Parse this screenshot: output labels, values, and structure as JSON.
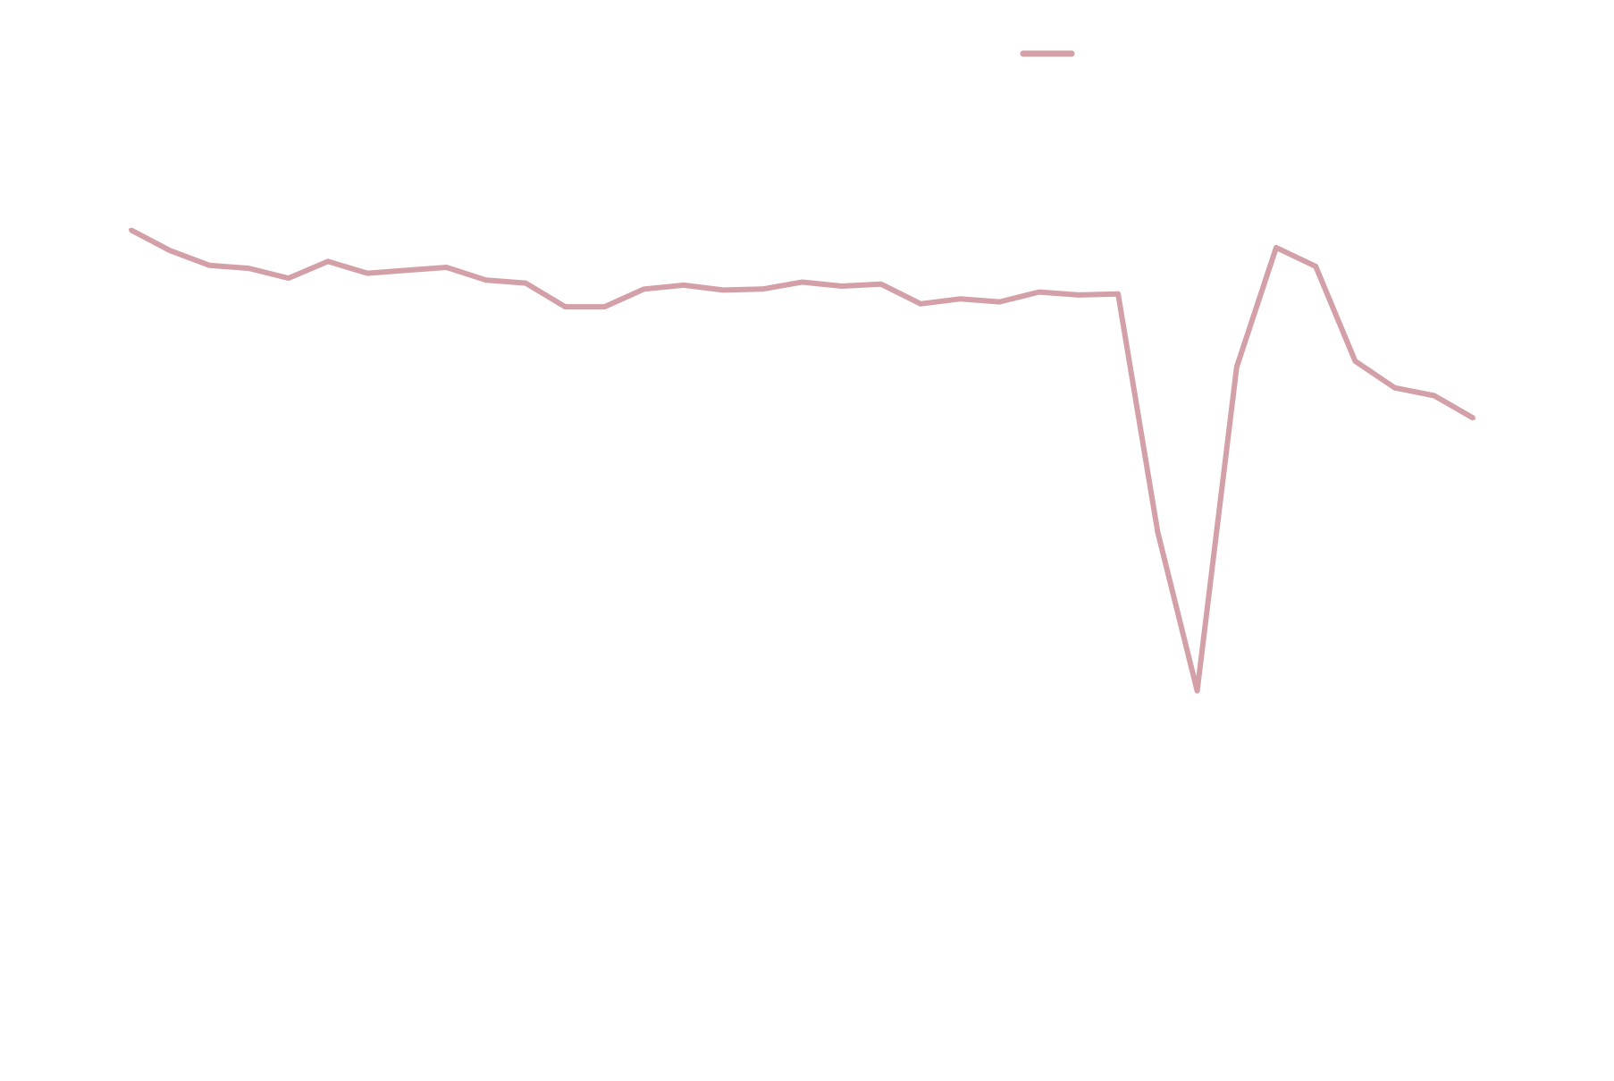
{
  "chart_data": {
    "type": "line",
    "title": "",
    "xlabel": "",
    "ylabel": "",
    "grid": false,
    "legend_position": "top-center",
    "x": [
      1,
      2,
      3,
      4,
      5,
      6,
      7,
      8,
      9,
      10,
      11,
      12,
      13,
      14,
      15,
      16,
      17,
      18,
      19,
      20,
      21,
      22,
      23,
      24,
      25,
      26,
      27,
      28,
      29,
      30,
      31,
      32,
      33,
      34,
      35
    ],
    "xlim": [
      1,
      35
    ],
    "ylim": [
      0,
      100
    ],
    "series": [
      {
        "color": "#d4a0a7",
        "values": [
          81.7,
          79.6,
          78.1,
          77.8,
          76.8,
          78.5,
          77.3,
          77.6,
          77.9,
          76.6,
          76.3,
          73.9,
          73.9,
          75.7,
          76.1,
          75.6,
          75.7,
          76.4,
          76.0,
          76.2,
          74.2,
          74.7,
          74.4,
          75.4,
          75.1,
          75.2,
          51.1,
          35.0,
          67.8,
          79.9,
          78.0,
          68.4,
          65.7,
          64.9,
          62.6
        ]
      }
    ]
  }
}
